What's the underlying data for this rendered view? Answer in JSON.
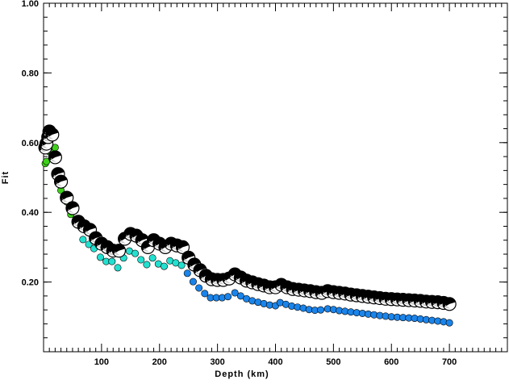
{
  "chart_data": {
    "type": "scatter",
    "title": "",
    "xlabel": "Depth (km)",
    "ylabel": "Fit",
    "xlim": [
      0,
      800
    ],
    "ylim": [
      0,
      1.0
    ],
    "xticks": [
      100,
      200,
      300,
      400,
      500,
      600,
      700
    ],
    "xtick_labels": [
      "100",
      "200",
      "300",
      "400",
      "500",
      "600",
      "700"
    ],
    "yticks": [
      0.2,
      0.4,
      0.6,
      0.8,
      1.0
    ],
    "ytick_labels": [
      "0.20",
      "0.40",
      "0.60",
      "0.80",
      "1.00"
    ],
    "grid": false,
    "series": [
      {
        "name": "mechanism-fit",
        "marker": "beachball",
        "x": [
          3,
          5,
          8,
          10,
          15,
          20,
          25,
          30,
          40,
          50,
          60,
          70,
          80,
          90,
          100,
          110,
          120,
          130,
          140,
          150,
          160,
          170,
          180,
          190,
          200,
          210,
          220,
          230,
          240,
          250,
          260,
          270,
          280,
          290,
          300,
          310,
          320,
          330,
          340,
          350,
          360,
          370,
          380,
          390,
          400,
          410,
          420,
          430,
          440,
          450,
          460,
          470,
          480,
          490,
          500,
          510,
          520,
          530,
          540,
          550,
          560,
          570,
          580,
          590,
          600,
          610,
          620,
          630,
          640,
          650,
          660,
          670,
          680,
          690,
          700
        ],
        "y": [
          0.586,
          0.597,
          0.616,
          0.632,
          0.623,
          0.558,
          0.51,
          0.488,
          0.442,
          0.412,
          0.373,
          0.36,
          0.35,
          0.326,
          0.31,
          0.3,
          0.29,
          0.29,
          0.324,
          0.338,
          0.333,
          0.32,
          0.3,
          0.32,
          0.31,
          0.3,
          0.31,
          0.305,
          0.3,
          0.27,
          0.25,
          0.234,
          0.218,
          0.208,
          0.206,
          0.206,
          0.21,
          0.222,
          0.213,
          0.204,
          0.199,
          0.194,
          0.19,
          0.185,
          0.185,
          0.192,
          0.185,
          0.18,
          0.178,
          0.176,
          0.174,
          0.171,
          0.169,
          0.174,
          0.171,
          0.169,
          0.167,
          0.164,
          0.162,
          0.16,
          0.158,
          0.156,
          0.154,
          0.152,
          0.151,
          0.15,
          0.149,
          0.148,
          0.147,
          0.146,
          0.144,
          0.143,
          0.142,
          0.14,
          0.137
        ]
      },
      {
        "name": "dot-fit",
        "marker": "dot",
        "x": [
          3,
          5,
          10,
          15,
          20,
          25,
          30,
          35,
          40,
          47,
          57,
          68,
          78,
          87,
          98,
          108,
          118,
          128,
          138,
          148,
          158,
          168,
          178,
          188,
          198,
          208,
          218,
          228,
          238,
          248,
          258,
          268,
          278,
          288,
          298,
          308,
          318,
          330,
          340,
          350,
          360,
          370,
          380,
          390,
          400,
          408,
          418,
          428,
          438,
          448,
          458,
          468,
          478,
          490,
          500,
          510,
          520,
          530,
          540,
          550,
          560,
          570,
          580,
          590,
          600,
          610,
          620,
          630,
          640,
          650,
          660,
          670,
          680,
          690,
          700
        ],
        "y": [
          0.54,
          0.546,
          0.574,
          0.57,
          0.586,
          0.56,
          0.463,
          0.437,
          0.43,
          0.394,
          0.366,
          0.322,
          0.308,
          0.296,
          0.271,
          0.259,
          0.259,
          0.241,
          0.269,
          0.289,
          0.282,
          0.264,
          0.25,
          0.269,
          0.252,
          0.245,
          0.261,
          0.255,
          0.248,
          0.225,
          0.201,
          0.183,
          0.167,
          0.155,
          0.155,
          0.155,
          0.158,
          0.169,
          0.16,
          0.152,
          0.146,
          0.142,
          0.138,
          0.134,
          0.132,
          0.141,
          0.136,
          0.131,
          0.128,
          0.125,
          0.121,
          0.119,
          0.12,
          0.123,
          0.121,
          0.118,
          0.116,
          0.114,
          0.112,
          0.11,
          0.108,
          0.106,
          0.104,
          0.102,
          0.1,
          0.099,
          0.098,
          0.097,
          0.096,
          0.094,
          0.092,
          0.09,
          0.088,
          0.086,
          0.083
        ]
      }
    ],
    "dot_colors": [
      {
        "max_depth": 60,
        "color": "#3ed11a"
      },
      {
        "max_depth": 240,
        "color": "#22e0d0"
      },
      {
        "max_depth": 800,
        "color": "#1a84ea"
      }
    ]
  }
}
